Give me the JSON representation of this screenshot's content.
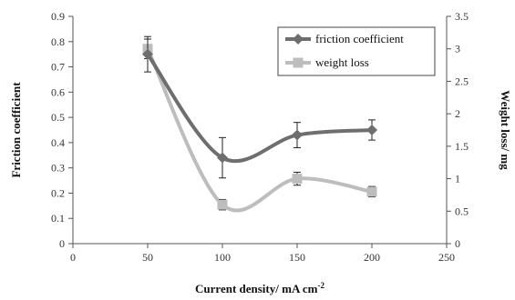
{
  "chart_data": {
    "type": "line",
    "x": [
      50,
      100,
      150,
      200
    ],
    "xlabel": "Current density/ mA cm",
    "xlabel_sup": "-2",
    "xlim": [
      0,
      250
    ],
    "xticks": [
      0,
      50,
      100,
      150,
      200,
      250
    ],
    "ylabel": "Friction coefficient",
    "ylim": [
      0,
      0.9
    ],
    "yticks": [
      "0",
      "0.1",
      "0.2",
      "0.3",
      "0.4",
      "0.5",
      "0.6",
      "0.7",
      "0.8",
      "0.9"
    ],
    "y2label": "Weight loss/ mg",
    "y2lim": [
      0,
      3.5
    ],
    "y2ticks": [
      "0",
      "0.5",
      "1",
      "1.5",
      "2",
      "2.5",
      "3",
      "3.5"
    ],
    "legend_position": "top-right",
    "grid": false,
    "series": [
      {
        "name": "friction coefficient",
        "axis": "left",
        "marker": "diamond",
        "color": "#6e6e6e",
        "values": [
          0.75,
          0.34,
          0.43,
          0.45
        ],
        "errors": [
          0.07,
          0.08,
          0.05,
          0.04
        ]
      },
      {
        "name": "weight loss",
        "axis": "right",
        "marker": "square",
        "color": "#bdbdbd",
        "values": [
          3.0,
          0.6,
          1.0,
          0.8
        ],
        "errors": [
          0.15,
          0.08,
          0.1,
          0.08
        ]
      }
    ]
  }
}
